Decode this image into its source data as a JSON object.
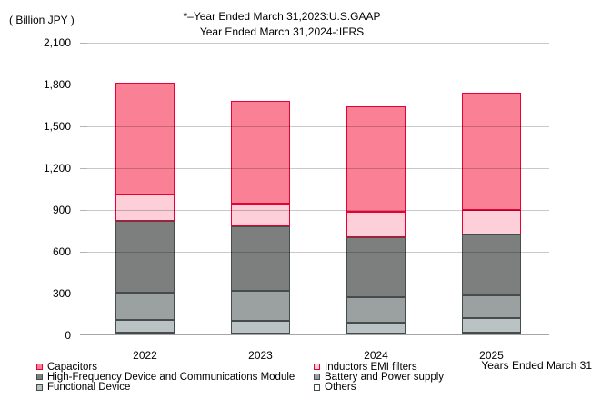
{
  "header": {
    "unit_label": "( Billion JPY )",
    "title_line1": "*–Year Ended March 31,2023:U.S.GAAP",
    "title_line2": "Year Ended March 31,2024-:IFRS"
  },
  "x_axis_note": "Years Ended March 31",
  "colors": {
    "gridline": "#C9C9C9",
    "axis": "#A6A6A6",
    "text": "#000000",
    "accent_red": "#E60033"
  },
  "chart_data": {
    "type": "bar",
    "stacked": true,
    "unit": "Billion JPY",
    "categories": [
      "2022",
      "2023",
      "2024",
      "2025"
    ],
    "series": [
      {
        "name": "Capacitors",
        "color": "#FA8096",
        "border": "#E60033",
        "values": [
          799,
          742,
          754,
          839
        ]
      },
      {
        "name": "Inductors EMI filters",
        "color": "#FCCFD9",
        "border": "#E60033",
        "values": [
          188,
          163,
          181,
          182
        ]
      },
      {
        "name": "High-Frequency Device and Communications Module",
        "color": "#7D7F7F",
        "border": "#454C4C",
        "values": [
          521,
          459,
          430,
          431
        ]
      },
      {
        "name": "Battery and Power supply",
        "color": "#9BA1A1",
        "border": "#454C4C",
        "values": [
          194,
          214,
          185,
          168
        ]
      },
      {
        "name": "Functional Device",
        "color": "#BAC2C3",
        "border": "#454C4C",
        "values": [
          92,
          94,
          77,
          102
        ]
      },
      {
        "name": "Others",
        "color": "#FFFFFF",
        "border": "#454C4C",
        "values": [
          18,
          13,
          15,
          20
        ]
      }
    ],
    "totals": [
      1812,
      1685,
      1642,
      1742
    ],
    "stack_order_bottom_to_top": [
      "Others",
      "Functional Device",
      "Battery and Power supply",
      "High-Frequency Device and Communications Module",
      "Inductors EMI filters",
      "Capacitors"
    ],
    "y_axis": {
      "min": 0,
      "max": 2100,
      "step": 300,
      "tick_labels": [
        "0",
        "300",
        "600",
        "900",
        "1,200",
        "1,500",
        "1,800",
        "2,100"
      ]
    },
    "grid": true,
    "legend_position": "bottom"
  }
}
